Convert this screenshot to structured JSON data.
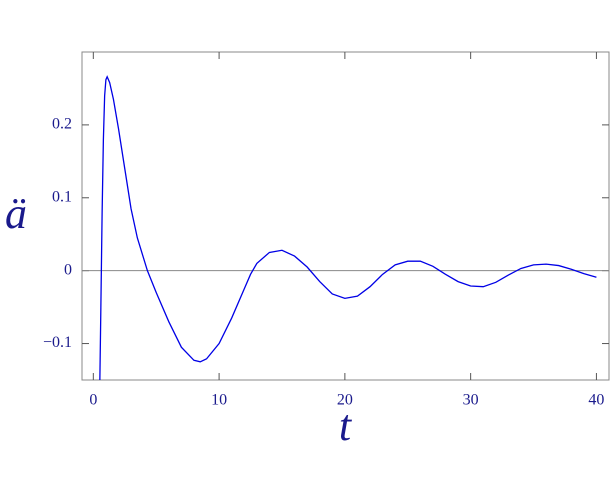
{
  "chart_data": {
    "type": "line",
    "xlabel": "t",
    "ylabel": "ä",
    "x": [
      0.52,
      0.6,
      0.7,
      0.8,
      0.9,
      1.0,
      1.1,
      1.3,
      1.6,
      2.0,
      2.5,
      3.0,
      3.5,
      4.3,
      5,
      6,
      7,
      8,
      8.5,
      9,
      10,
      11,
      12,
      12.5,
      13,
      14,
      15,
      16,
      17,
      18,
      19,
      20,
      21,
      22,
      23,
      24,
      25,
      26,
      27,
      28,
      29,
      30,
      31,
      32,
      33,
      34,
      35,
      36,
      37,
      38,
      39,
      40
    ],
    "series": [
      {
        "color": "#0000e6",
        "values": [
          -0.15,
          -0.05,
          0.08,
          0.18,
          0.24,
          0.262,
          0.266,
          0.258,
          0.235,
          0.195,
          0.14,
          0.085,
          0.045,
          0.0,
          -0.03,
          -0.07,
          -0.105,
          -0.123,
          -0.125,
          -0.121,
          -0.1,
          -0.065,
          -0.025,
          -0.005,
          0.01,
          0.025,
          0.028,
          0.02,
          0.005,
          -0.015,
          -0.032,
          -0.038,
          -0.035,
          -0.022,
          -0.005,
          0.008,
          0.013,
          0.013,
          0.006,
          -0.005,
          -0.015,
          -0.021,
          -0.022,
          -0.016,
          -0.006,
          0.003,
          0.008,
          0.009,
          0.007,
          0.002,
          -0.004,
          -0.009
        ]
      }
    ],
    "xlim": [
      -0.9,
      41
    ],
    "ylim": [
      -0.15,
      0.3
    ],
    "xticks": [
      0,
      10,
      20,
      30,
      40
    ],
    "yticks": [
      0.2,
      0.1,
      0,
      {
        "value": -0.1,
        "label": "−0.1"
      }
    ],
    "zero_line": true,
    "label_color": "#1a1a8c"
  }
}
